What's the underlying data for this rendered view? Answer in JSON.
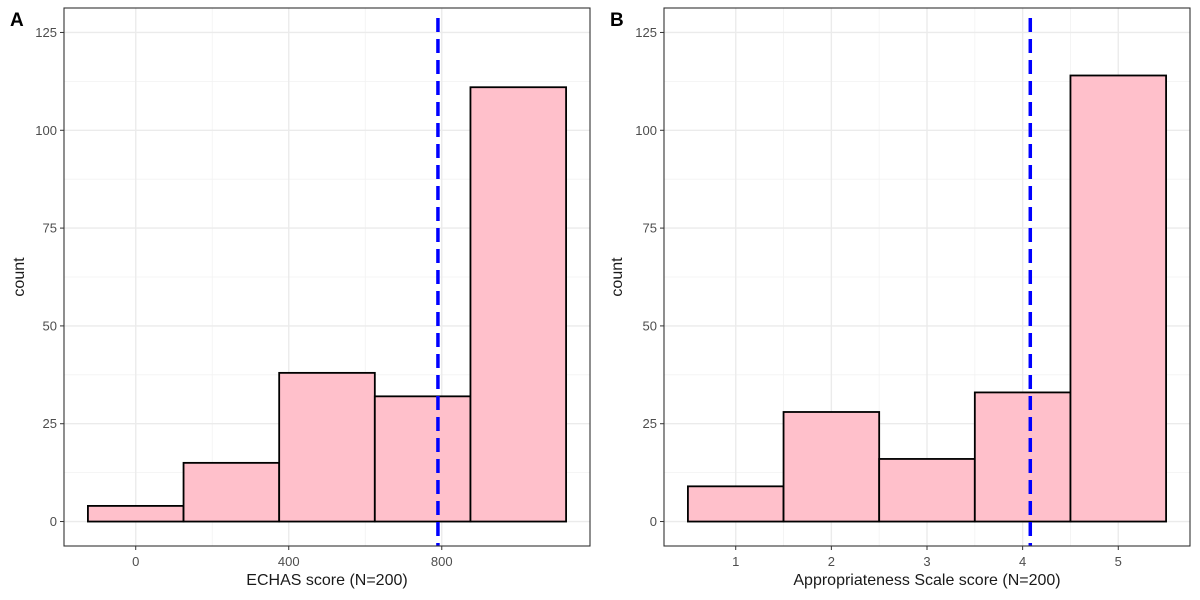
{
  "chart_data": [
    {
      "type": "bar",
      "panel_label": "A",
      "xlabel": "ECHAS score (N=200)",
      "ylabel": "count",
      "bins": [
        {
          "x0": -125,
          "x1": 125,
          "count": 4
        },
        {
          "x0": 125,
          "x1": 375,
          "count": 15
        },
        {
          "x0": 375,
          "x1": 625,
          "count": 38
        },
        {
          "x0": 625,
          "x1": 875,
          "count": 32
        },
        {
          "x0": 875,
          "x1": 1125,
          "count": 111
        }
      ],
      "x_ticks": [
        0,
        400,
        800
      ],
      "y_ticks": [
        0,
        25,
        50,
        75,
        100,
        125
      ],
      "xlim": [
        -187.5,
        1187.5
      ],
      "ylim": [
        -6.25,
        131.25
      ],
      "reference_line": {
        "x": 790,
        "color": "#0000ff",
        "style": "dashed"
      },
      "fill_color": "#ffc0cb",
      "edge_color": "#000000",
      "grid": true
    },
    {
      "type": "bar",
      "panel_label": "B",
      "xlabel": "Appropriateness Scale score (N=200)",
      "ylabel": "count",
      "bins": [
        {
          "x0": 0.5,
          "x1": 1.5,
          "count": 9
        },
        {
          "x0": 1.5,
          "x1": 2.5,
          "count": 28
        },
        {
          "x0": 2.5,
          "x1": 3.5,
          "count": 16
        },
        {
          "x0": 3.5,
          "x1": 4.5,
          "count": 33
        },
        {
          "x0": 4.5,
          "x1": 5.5,
          "count": 114
        }
      ],
      "x_ticks": [
        1,
        2,
        3,
        4,
        5
      ],
      "y_ticks": [
        0,
        25,
        50,
        75,
        100,
        125
      ],
      "xlim": [
        0.25,
        5.75
      ],
      "ylim": [
        -6.25,
        131.25
      ],
      "reference_line": {
        "x": 4.08,
        "color": "#0000ff",
        "style": "dashed"
      },
      "fill_color": "#ffc0cb",
      "edge_color": "#000000",
      "grid": true
    }
  ]
}
